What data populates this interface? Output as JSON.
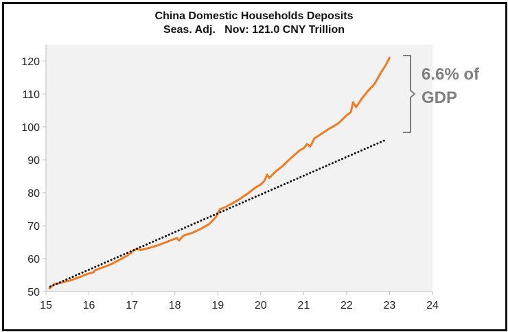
{
  "chart_data": {
    "type": "line",
    "title": "China Domestic Households Deposits",
    "subtitle": "Seas. Adj.   Nov: 121.0 CNY Trillion",
    "xlim": [
      15,
      24
    ],
    "ylim": [
      50,
      125
    ],
    "x_ticks": [
      "15",
      "16",
      "17",
      "18",
      "19",
      "20",
      "21",
      "22",
      "23",
      "24"
    ],
    "y_ticks": [
      "50",
      "60",
      "70",
      "80",
      "90",
      "100",
      "110",
      "120"
    ],
    "grid": false,
    "series": [
      {
        "style": "solid",
        "color": "#f07b22",
        "points": [
          [
            15.08,
            51.0
          ],
          [
            15.2,
            52.3
          ],
          [
            15.3,
            52.5
          ],
          [
            15.45,
            53.0
          ],
          [
            15.6,
            53.5
          ],
          [
            15.75,
            54.2
          ],
          [
            15.9,
            55.0
          ],
          [
            16.0,
            55.5
          ],
          [
            16.1,
            55.8
          ],
          [
            16.15,
            56.5
          ],
          [
            16.3,
            57.2
          ],
          [
            16.5,
            58.2
          ],
          [
            16.7,
            59.5
          ],
          [
            16.9,
            61.0
          ],
          [
            17.05,
            62.5
          ],
          [
            17.12,
            63.0
          ],
          [
            17.2,
            62.6
          ],
          [
            17.4,
            63.2
          ],
          [
            17.6,
            64.0
          ],
          [
            17.8,
            65.0
          ],
          [
            17.95,
            65.8
          ],
          [
            18.05,
            66.2
          ],
          [
            18.1,
            65.5
          ],
          [
            18.2,
            67.0
          ],
          [
            18.4,
            67.8
          ],
          [
            18.6,
            69.0
          ],
          [
            18.8,
            70.5
          ],
          [
            18.95,
            72.5
          ],
          [
            19.05,
            75.0
          ],
          [
            19.15,
            75.5
          ],
          [
            19.3,
            76.5
          ],
          [
            19.5,
            78.0
          ],
          [
            19.7,
            79.8
          ],
          [
            19.9,
            81.8
          ],
          [
            20.0,
            82.5
          ],
          [
            20.08,
            83.5
          ],
          [
            20.15,
            85.5
          ],
          [
            20.2,
            84.5
          ],
          [
            20.35,
            86.5
          ],
          [
            20.5,
            88.0
          ],
          [
            20.7,
            90.5
          ],
          [
            20.9,
            92.8
          ],
          [
            21.0,
            93.5
          ],
          [
            21.08,
            94.8
          ],
          [
            21.15,
            94.0
          ],
          [
            21.25,
            96.5
          ],
          [
            21.4,
            97.8
          ],
          [
            21.6,
            99.5
          ],
          [
            21.8,
            101.0
          ],
          [
            22.0,
            103.5
          ],
          [
            22.1,
            104.5
          ],
          [
            22.15,
            107.5
          ],
          [
            22.22,
            106.0
          ],
          [
            22.35,
            108.5
          ],
          [
            22.5,
            111.0
          ],
          [
            22.65,
            113.0
          ],
          [
            22.8,
            116.5
          ],
          [
            22.9,
            118.5
          ],
          [
            23.0,
            121.0
          ]
        ]
      },
      {
        "style": "dotted",
        "color": "#111111",
        "points": [
          [
            15.1,
            51.5
          ],
          [
            22.9,
            96.0
          ]
        ]
      }
    ],
    "annotation": {
      "line1": "6.6% of",
      "line2": "GDP",
      "range": [
        100,
        120
      ],
      "color": "#7f7f7f"
    }
  }
}
